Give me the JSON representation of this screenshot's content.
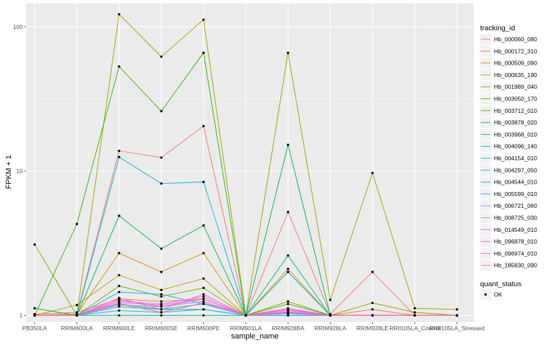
{
  "chart_data": {
    "type": "line",
    "xlabel": "sample_name",
    "ylabel": "FPKM + 1",
    "y_scale": "log10",
    "ylim": [
      0.9,
      145
    ],
    "y_ticks": [
      1,
      10,
      100
    ],
    "y_tick_labels": [
      "1",
      "10",
      "100"
    ],
    "categories": [
      "PB350LA",
      "RRIM600LA",
      "RRIM600LE",
      "RRIM600SE",
      "RRIM600PE",
      "RRIM901LA",
      "RRIM928BA",
      "RRIM928LA",
      "RRIM928LE",
      "RRII105LA_Control",
      "RRII105LA_Stressed"
    ],
    "series": [
      {
        "name": "Hb_000060_080",
        "color": "#F8766D",
        "values": [
          1.0,
          1.02,
          13.8,
          12.4,
          20.5,
          1.0,
          5.2,
          1.02,
          2.0,
          1.0,
          1.0
        ]
      },
      {
        "name": "Hb_000172_310",
        "color": "#EA8331",
        "values": [
          1.02,
          1.05,
          1.3,
          1.25,
          1.3,
          1.0,
          1.1,
          1.0,
          1.1,
          1.0,
          1.0
        ]
      },
      {
        "name": "Hb_000509_090",
        "color": "#D89000",
        "values": [
          1.0,
          1.02,
          2.7,
          2.0,
          2.7,
          1.0,
          2.1,
          1.0,
          1.0,
          1.0,
          1.0
        ]
      },
      {
        "name": "Hb_000635_190",
        "color": "#C09B00",
        "values": [
          1.0,
          1.18,
          1.9,
          1.5,
          1.8,
          1.0,
          2.0,
          1.0,
          1.0,
          1.0,
          1.0
        ]
      },
      {
        "name": "Hb_001989_040",
        "color": "#A3A500",
        "values": [
          1.0,
          1.0,
          122.0,
          62.0,
          112.0,
          1.0,
          66.0,
          1.28,
          9.7,
          1.12,
          1.1
        ]
      },
      {
        "name": "Hb_003050_170",
        "color": "#7CAE00",
        "values": [
          3.1,
          1.0,
          1.6,
          1.35,
          1.55,
          1.0,
          1.25,
          1.0,
          1.22,
          1.05,
          1.0
        ]
      },
      {
        "name": "Hb_003712_010",
        "color": "#39B600",
        "values": [
          1.0,
          4.3,
          53.0,
          26.0,
          66.0,
          1.0,
          1.2,
          1.0,
          1.0,
          1.0,
          1.0
        ]
      },
      {
        "name": "Hb_003878_020",
        "color": "#00BB4E",
        "values": [
          1.12,
          1.0,
          4.9,
          2.9,
          4.2,
          1.0,
          15.2,
          1.0,
          1.0,
          1.0,
          1.0
        ]
      },
      {
        "name": "Hb_003968_010",
        "color": "#00BF7D",
        "values": [
          1.0,
          1.0,
          1.0,
          1.0,
          1.0,
          1.0,
          2.6,
          1.0,
          1.0,
          1.0,
          1.0
        ]
      },
      {
        "name": "Hb_004096_140",
        "color": "#00C1A3",
        "values": [
          1.0,
          1.0,
          1.2,
          1.1,
          1.2,
          1.0,
          1.05,
          1.0,
          1.0,
          1.0,
          1.0
        ]
      },
      {
        "name": "Hb_004154_010",
        "color": "#00BFC4",
        "values": [
          1.0,
          1.0,
          1.15,
          1.1,
          1.1,
          1.0,
          2.0,
          1.0,
          1.0,
          1.0,
          1.0
        ]
      },
      {
        "name": "Hb_004297_050",
        "color": "#00BAE0",
        "values": [
          1.0,
          1.0,
          12.5,
          8.2,
          8.4,
          1.0,
          1.0,
          1.0,
          1.0,
          1.0,
          1.0
        ]
      },
      {
        "name": "Hb_004544_010",
        "color": "#00B0F6",
        "values": [
          1.0,
          1.0,
          1.45,
          1.4,
          1.2,
          1.0,
          1.0,
          1.0,
          1.0,
          1.0,
          1.0
        ]
      },
      {
        "name": "Hb_005599_010",
        "color": "#35A2FF",
        "values": [
          1.0,
          1.0,
          1.08,
          1.05,
          1.1,
          1.0,
          1.0,
          1.0,
          1.0,
          1.0,
          1.0
        ]
      },
      {
        "name": "Hb_006721_060",
        "color": "#9590FF",
        "values": [
          1.0,
          1.0,
          1.18,
          1.15,
          1.25,
          1.0,
          1.03,
          1.0,
          1.0,
          1.0,
          1.0
        ]
      },
      {
        "name": "Hb_008725_030",
        "color": "#C77CFF",
        "values": [
          1.0,
          1.0,
          1.22,
          1.18,
          1.3,
          1.0,
          1.06,
          1.0,
          1.0,
          1.0,
          1.0
        ]
      },
      {
        "name": "Hb_014549_010",
        "color": "#E76BF3",
        "values": [
          1.0,
          1.0,
          1.25,
          1.2,
          1.35,
          1.0,
          1.08,
          1.0,
          1.0,
          1.0,
          1.0
        ]
      },
      {
        "name": "Hb_096878_010",
        "color": "#FA62DB",
        "values": [
          1.0,
          1.0,
          1.32,
          1.1,
          1.4,
          1.0,
          1.12,
          1.0,
          1.0,
          1.0,
          1.0
        ]
      },
      {
        "name": "Hb_096974_010",
        "color": "#FF62BC",
        "values": [
          1.0,
          1.0,
          1.28,
          1.15,
          1.3,
          1.0,
          1.1,
          1.0,
          1.0,
          1.0,
          1.0
        ]
      },
      {
        "name": "Hb_185830_090",
        "color": "#FF6C91",
        "values": [
          1.0,
          1.0,
          1.2,
          1.05,
          1.22,
          1.0,
          1.04,
          1.0,
          1.0,
          1.0,
          1.0
        ]
      }
    ],
    "legend": {
      "title": "tracking_id",
      "position": "right"
    },
    "legend2": {
      "title": "quant_status",
      "items": [
        "OK"
      ]
    },
    "grid": true,
    "panel_background": "#EBEBEB",
    "grid_color": "#FFFFFF",
    "point_color": "#000000"
  }
}
